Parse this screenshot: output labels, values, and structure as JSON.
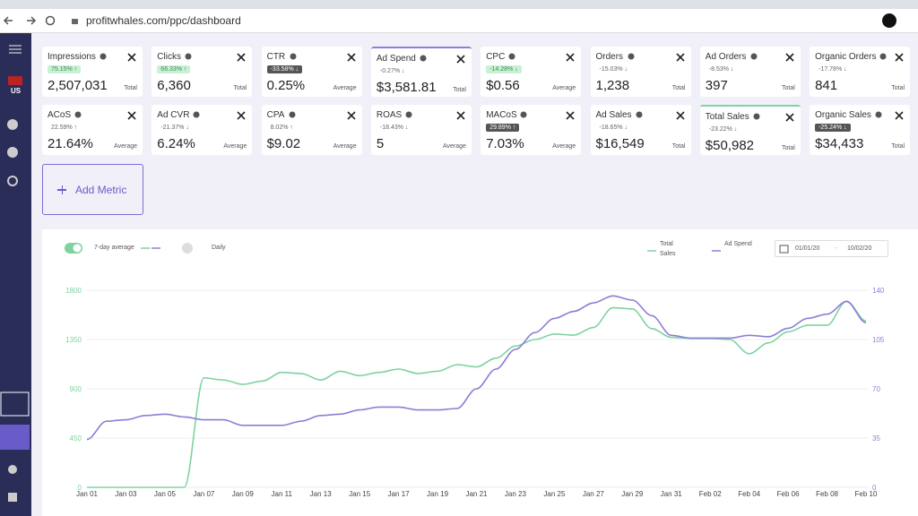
{
  "browser": {
    "url": "profitwhales.com/ppc/dashboard"
  },
  "sidebar": {
    "region": "US"
  },
  "metrics": [
    {
      "name": "Impressions",
      "change": "75.15% ↑",
      "tone": "green",
      "value": "2,507,031",
      "footer": "Total"
    },
    {
      "name": "Clicks",
      "change": "66.33% ↑",
      "tone": "green",
      "value": "6,360",
      "footer": "Total"
    },
    {
      "name": "CTR",
      "change": "-33.58% ↓",
      "tone": "dark",
      "value": "0.25%",
      "footer": "Average"
    },
    {
      "name": "Ad Spend",
      "change": "-0.27% ↓",
      "tone": "gray",
      "value": "$3,581.81",
      "footer": "Total",
      "accent": "#8b7fd6"
    },
    {
      "name": "CPC",
      "change": "-14.28% ↓",
      "tone": "green",
      "value": "$0.56",
      "footer": "Average"
    },
    {
      "name": "Orders",
      "change": "-15.03% ↓",
      "tone": "gray",
      "value": "1,238",
      "footer": "Total"
    },
    {
      "name": "Ad Orders",
      "change": "-8.53% ↓",
      "tone": "gray",
      "value": "397",
      "footer": "Total"
    },
    {
      "name": "Organic Orders",
      "change": "-17.78% ↓",
      "tone": "gray",
      "value": "841",
      "footer": "Total"
    },
    {
      "name": "ACoS",
      "change": "22.59% ↑",
      "tone": "gray",
      "value": "21.64%",
      "footer": "Average"
    },
    {
      "name": "Ad CVR",
      "change": "-21.37% ↓",
      "tone": "gray",
      "value": "6.24%",
      "footer": "Average"
    },
    {
      "name": "CPA",
      "change": "8.02% ↑",
      "tone": "gray",
      "value": "$9.02",
      "footer": "Average"
    },
    {
      "name": "ROAS",
      "change": "-18.43% ↓",
      "tone": "gray",
      "value": "5",
      "footer": "Average"
    },
    {
      "name": "MACoS",
      "change": "29.89% ↑",
      "tone": "dark",
      "value": "7.03%",
      "footer": "Average"
    },
    {
      "name": "Ad Sales",
      "change": "-18.65% ↓",
      "tone": "gray",
      "value": "$16,549",
      "footer": "Total"
    },
    {
      "name": "Total Sales",
      "change": "-23.22% ↓",
      "tone": "gray",
      "value": "$50,982",
      "footer": "Total",
      "accent": "#7ed3a0"
    },
    {
      "name": "Organic Sales",
      "change": "-25.24% ↓",
      "tone": "dark",
      "value": "$34,433",
      "footer": "Total"
    }
  ],
  "add_metric": "Add Metric",
  "chart_controls": {
    "average_label": "7-day average",
    "daily_label": "Daily",
    "date_from": "01/01/20",
    "date_to": "10/02/20"
  },
  "chart_data": {
    "type": "line",
    "categories": [
      "Jan 01",
      null,
      "Jan 03",
      null,
      "Jan 05",
      null,
      "Jan 07",
      null,
      "Jan 09",
      null,
      "Jan 11",
      null,
      "Jan 13",
      null,
      "Jan 15",
      null,
      "Jan 17",
      null,
      "Jan 19",
      null,
      "Jan 21",
      null,
      "Jan 23",
      null,
      "Jan 25",
      null,
      "Jan 27",
      null,
      "Jan 29",
      null,
      "Jan 31",
      null,
      "Feb 02",
      null,
      "Feb 04",
      null,
      "Feb 06",
      null,
      "Feb 08",
      null,
      "Feb 10"
    ],
    "series": [
      {
        "name": "Total Sales",
        "color": "#7ed3a0",
        "axis": "y",
        "values": [
          0,
          0,
          0,
          0,
          0,
          0,
          1000,
          980,
          940,
          970,
          1050,
          1040,
          980,
          1060,
          1020,
          1050,
          1080,
          1040,
          1060,
          1120,
          1100,
          1180,
          1290,
          1350,
          1400,
          1390,
          1460,
          1640,
          1630,
          1450,
          1370,
          1360,
          1360,
          1350,
          1220,
          1320,
          1420,
          1480,
          1480,
          1700,
          1520
        ]
      },
      {
        "name": "Ad Spend",
        "color": "#8b7fd6",
        "axis": "y2",
        "values": [
          34,
          47,
          48,
          51,
          52,
          50,
          48,
          48,
          44,
          44,
          44,
          47,
          51,
          52,
          55,
          57,
          57,
          55,
          55,
          56,
          70,
          84,
          98,
          110,
          120,
          125,
          131,
          136,
          133,
          122,
          108,
          106,
          106,
          106,
          108,
          107,
          113,
          120,
          123,
          132,
          117
        ]
      }
    ],
    "ylim": [
      0,
      1800
    ],
    "yticks": [
      0,
      450,
      900,
      1350,
      1800
    ],
    "y2lim": [
      0,
      140
    ],
    "y2ticks": [
      0,
      35,
      70,
      105,
      140
    ],
    "grid": true
  }
}
